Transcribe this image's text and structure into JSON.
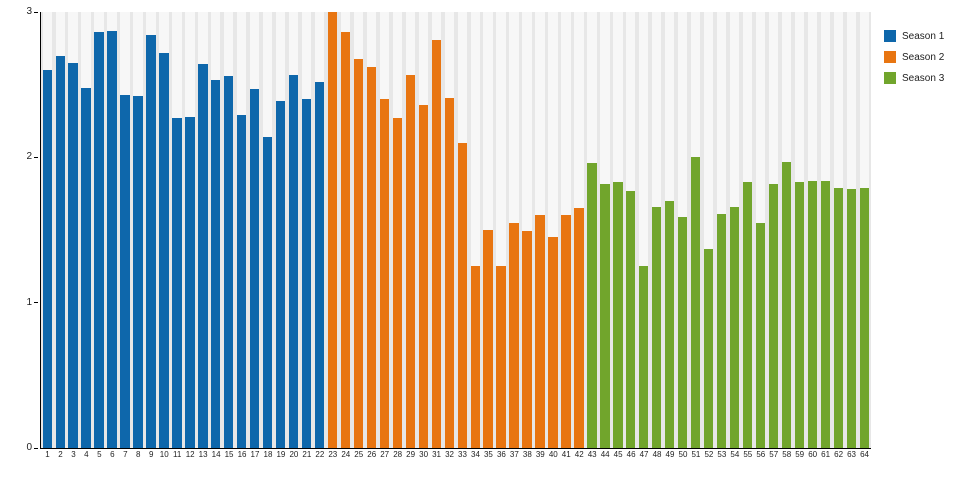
{
  "chart_data": {
    "type": "bar",
    "title": "",
    "xlabel": "",
    "ylabel": "",
    "ylim": [
      0,
      3
    ],
    "yticks": [
      0,
      1,
      2,
      3
    ],
    "grid": "column-bands",
    "plot_background": "#e7e7e7",
    "column_band_color": "#f7f7f7",
    "legend_position": "top-right",
    "categories": [
      1,
      2,
      3,
      4,
      5,
      6,
      7,
      8,
      9,
      10,
      11,
      12,
      13,
      14,
      15,
      16,
      17,
      18,
      19,
      20,
      21,
      22,
      23,
      24,
      25,
      26,
      27,
      28,
      29,
      30,
      31,
      32,
      33,
      34,
      35,
      36,
      37,
      38,
      39,
      40,
      41,
      42,
      43,
      44,
      45,
      46,
      47,
      48,
      49,
      50,
      51,
      52,
      53,
      54,
      55,
      56,
      57,
      58,
      59,
      60,
      61,
      62,
      63,
      64
    ],
    "series": [
      {
        "name": "Season 1",
        "color": "#0e67ab",
        "values": [
          2.6,
          2.7,
          2.65,
          2.48,
          2.86,
          2.87,
          2.43,
          2.42,
          2.84,
          2.72,
          2.27,
          2.28,
          2.64,
          2.53,
          2.56,
          2.29,
          2.47,
          2.14,
          2.39,
          2.57,
          2.4,
          2.52
        ]
      },
      {
        "name": "Season 2",
        "color": "#e87511",
        "values": [
          3.0,
          2.86,
          2.68,
          2.62,
          2.4,
          2.27,
          2.57,
          2.36,
          2.81,
          2.41,
          2.1,
          1.25,
          1.5,
          1.25,
          1.55,
          1.49,
          1.6,
          1.45,
          1.6,
          1.65
        ]
      },
      {
        "name": "Season 3",
        "color": "#71a52c",
        "values": [
          1.96,
          1.82,
          1.83,
          1.77,
          1.25,
          1.66,
          1.7,
          1.59,
          2.0,
          1.37,
          1.61,
          1.66,
          1.83,
          1.55,
          1.82,
          1.97,
          1.83,
          1.84,
          1.84,
          1.79,
          1.78,
          1.79
        ]
      }
    ]
  }
}
